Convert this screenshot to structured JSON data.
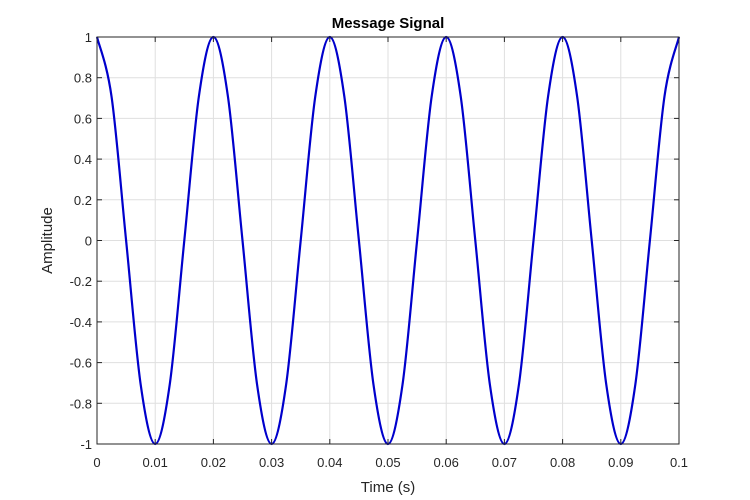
{
  "chart_data": {
    "type": "line",
    "title": "Message Signal",
    "xlabel": "Time (s)",
    "ylabel": "Amplitude",
    "xlim": [
      0,
      0.1
    ],
    "ylim": [
      -1,
      1
    ],
    "x_ticks": [
      0,
      0.01,
      0.02,
      0.03,
      0.04,
      0.05,
      0.06,
      0.07,
      0.08,
      0.09,
      0.1
    ],
    "x_tick_labels": [
      "0",
      "0.01",
      "0.02",
      "0.03",
      "0.04",
      "0.05",
      "0.06",
      "0.07",
      "0.08",
      "0.09",
      "0.1"
    ],
    "y_ticks": [
      1,
      0.8,
      0.6,
      0.4,
      0.2,
      0,
      -0.2,
      -0.4,
      -0.6,
      -0.8,
      -1
    ],
    "y_tick_labels": [
      "1",
      "0.8",
      "0.6",
      "0.4",
      "0.2",
      "0",
      "-0.2",
      "-0.4",
      "-0.6",
      "-0.8",
      "-1"
    ],
    "grid": true,
    "series": [
      {
        "color": "#0000cc",
        "x": [
          0,
          0.0025,
          0.005,
          0.0075,
          0.01,
          0.0125,
          0.015,
          0.0175,
          0.02,
          0.0225,
          0.025,
          0.0275,
          0.03,
          0.0325,
          0.035,
          0.0375,
          0.04,
          0.0425,
          0.045,
          0.0475,
          0.05,
          0.0525,
          0.055,
          0.0575,
          0.06,
          0.0625,
          0.065,
          0.0675,
          0.07,
          0.0725,
          0.075,
          0.0775,
          0.08,
          0.0825,
          0.085,
          0.0875,
          0.09,
          0.0925,
          0.095,
          0.0975,
          0.1
        ],
        "values": [
          1,
          0.707,
          0,
          -0.707,
          -1,
          -0.707,
          0,
          0.707,
          1,
          0.707,
          0,
          -0.707,
          -1,
          -0.707,
          0,
          0.707,
          1,
          0.707,
          0,
          -0.707,
          -1,
          -0.707,
          0,
          0.707,
          1,
          0.707,
          0,
          -0.707,
          -1,
          -0.707,
          0,
          0.707,
          1,
          0.707,
          0,
          -0.707,
          -1,
          -0.707,
          0,
          0.707,
          1
        ]
      }
    ]
  }
}
